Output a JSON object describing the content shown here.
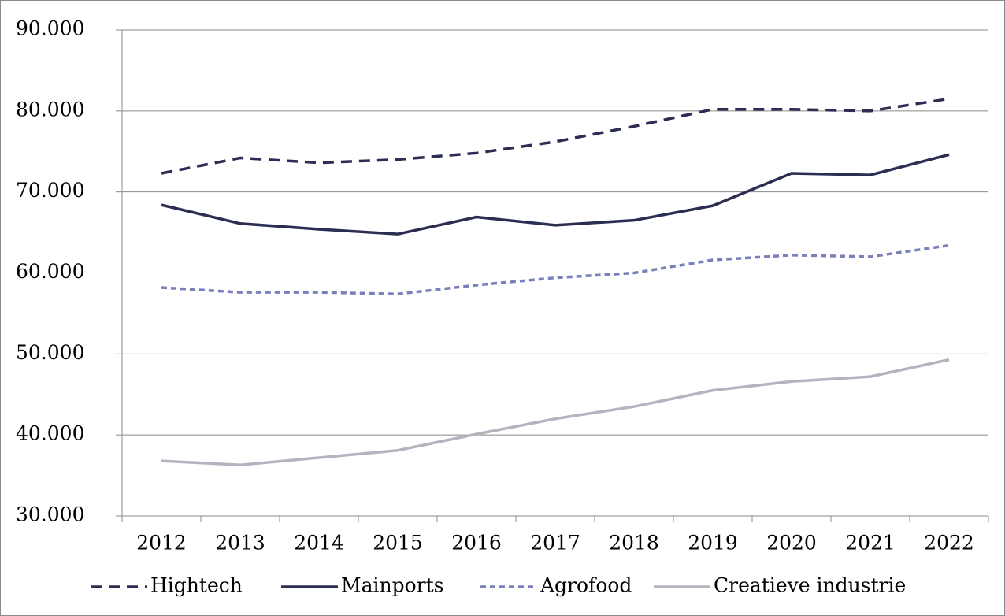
{
  "chart_data": {
    "type": "line",
    "categories": [
      "2012",
      "2013",
      "2014",
      "2015",
      "2016",
      "2017",
      "2018",
      "2019",
      "2020",
      "2021",
      "2022"
    ],
    "series": [
      {
        "name": "Hightech",
        "color": "#2b2d52",
        "line_style": "dashed",
        "values": [
          72300,
          74200,
          73600,
          74000,
          74800,
          76200,
          78100,
          80200,
          80200,
          80000,
          81500
        ]
      },
      {
        "name": "Mainports",
        "color": "#2b2d52",
        "line_style": "solid",
        "values": [
          68400,
          66100,
          65400,
          64800,
          66900,
          65900,
          66500,
          68300,
          72300,
          72100,
          74600
        ]
      },
      {
        "name": "Agrofood",
        "color": "#7b7fba",
        "line_style": "dotted",
        "values": [
          58200,
          57600,
          57600,
          57400,
          58500,
          59400,
          60000,
          61600,
          62200,
          62000,
          63400
        ]
      },
      {
        "name": "Creatieve industrie",
        "color": "#b5b3bf",
        "line_style": "solid",
        "values": [
          36800,
          36300,
          37200,
          38100,
          40100,
          42000,
          43500,
          45500,
          46600,
          47200,
          49300
        ]
      }
    ],
    "ylim": [
      30000,
      90000
    ],
    "yticks": [
      {
        "value": 30000,
        "label": "30.000"
      },
      {
        "value": 40000,
        "label": "40.000"
      },
      {
        "value": 50000,
        "label": "50.000"
      },
      {
        "value": 60000,
        "label": "60.000"
      },
      {
        "value": 70000,
        "label": "70.000"
      },
      {
        "value": 80000,
        "label": "80.000"
      },
      {
        "value": 90000,
        "label": "90.000"
      }
    ],
    "grid": true,
    "legend": "bottom"
  }
}
